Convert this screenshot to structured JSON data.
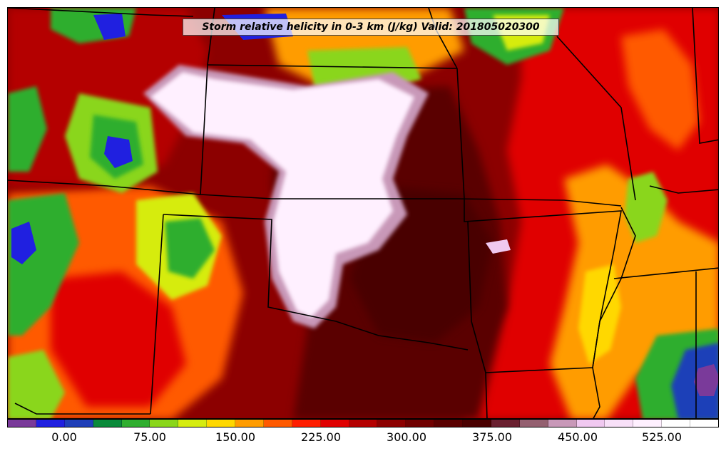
{
  "title": "Storm relative helicity in 0-3 km (J/kg) Valid: 201805020300",
  "colorbar": {
    "colors": [
      "#7a3a9a",
      "#2020e0",
      "#1f3fb8",
      "#0a8a3a",
      "#2fae2f",
      "#8ad61a",
      "#d6ec10",
      "#ffd800",
      "#ff9c00",
      "#ff5a00",
      "#ff1e00",
      "#e00000",
      "#b40000",
      "#8c0000",
      "#700000",
      "#5a0000",
      "#4a0000",
      "#6a2030",
      "#946070",
      "#c898b8",
      "#f0c8f0",
      "#f8e0f8",
      "#fff0ff",
      "#ffffff",
      "#ffffff"
    ],
    "ticks": [
      "0.00",
      "75.00",
      "150.00",
      "225.00",
      "300.00",
      "375.00",
      "450.00",
      "525.00"
    ]
  },
  "map": {
    "field_colors": {
      "low": "#2fae2f",
      "mid": "#ff9c00",
      "high": "#b40000",
      "very_high": "#5a0000",
      "extreme": "#fff0ff"
    }
  }
}
